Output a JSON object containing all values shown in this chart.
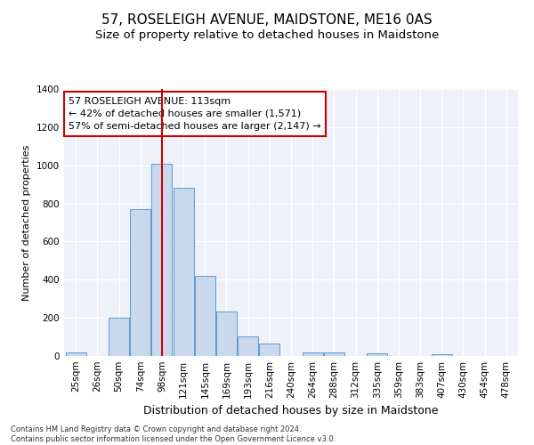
{
  "title": "57, ROSELEIGH AVENUE, MAIDSTONE, ME16 0AS",
  "subtitle": "Size of property relative to detached houses in Maidstone",
  "xlabel": "Distribution of detached houses by size in Maidstone",
  "ylabel": "Number of detached properties",
  "categories": [
    "25sqm",
    "26sqm",
    "50sqm",
    "74sqm",
    "98sqm",
    "121sqm",
    "145sqm",
    "169sqm",
    "193sqm",
    "216sqm",
    "240sqm",
    "264sqm",
    "288sqm",
    "312sqm",
    "335sqm",
    "359sqm",
    "383sqm",
    "407sqm",
    "430sqm",
    "454sqm",
    "478sqm"
  ],
  "values": [
    20,
    0,
    200,
    770,
    1010,
    880,
    420,
    235,
    105,
    65,
    0,
    20,
    20,
    0,
    15,
    0,
    0,
    10,
    0,
    0,
    0
  ],
  "bar_color": "#c9d9eb",
  "bar_edge_color": "#5b9bd5",
  "vline_color": "#cc0000",
  "vline_index": 4.5,
  "annotation_line1": "57 ROSELEIGH AVENUE: 113sqm",
  "annotation_line2": "← 42% of detached houses are smaller (1,571)",
  "annotation_line3": "57% of semi-detached houses are larger (2,147) →",
  "annotation_box_facecolor": "#ffffff",
  "annotation_box_edgecolor": "#cc0000",
  "footer_line1": "Contains HM Land Registry data © Crown copyright and database right 2024.",
  "footer_line2": "Contains public sector information licensed under the Open Government Licence v3.0.",
  "ylim": [
    0,
    1400
  ],
  "yticks": [
    0,
    200,
    400,
    600,
    800,
    1000,
    1200,
    1400
  ],
  "bg_color": "#eef2f8",
  "grid_color": "#ffffff",
  "title_fontsize": 11,
  "subtitle_fontsize": 9.5,
  "tick_fontsize": 7.5,
  "ylabel_fontsize": 8,
  "xlabel_fontsize": 9,
  "annotation_fontsize": 8,
  "footer_fontsize": 6
}
